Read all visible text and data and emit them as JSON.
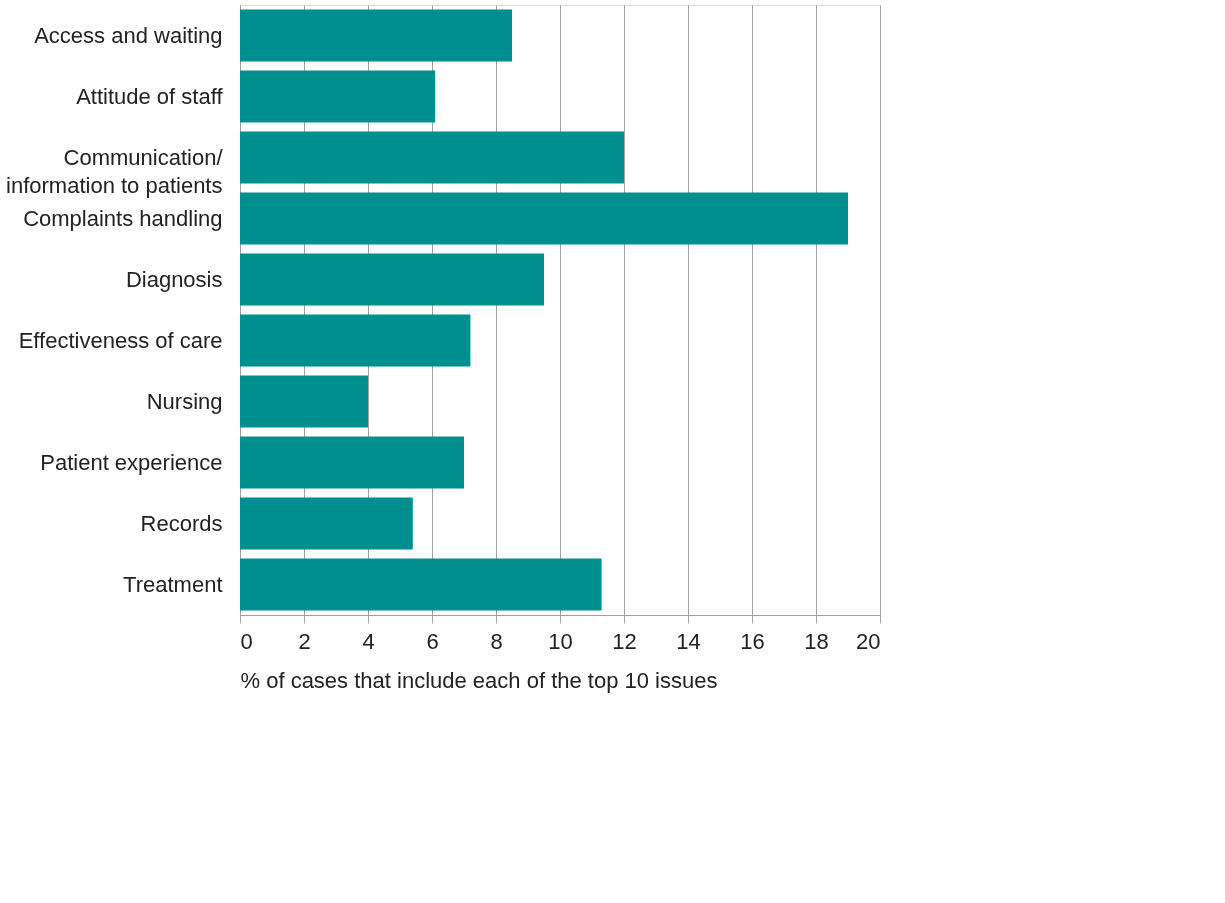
{
  "chart_data": {
    "type": "bar",
    "orientation": "horizontal",
    "xlabel": "% of cases that include each of the top 10 issues",
    "categories": [
      "Access and waiting",
      "Attitude of staff",
      "Communication/ information to patients",
      "Complaints handling",
      "Diagnosis",
      "Effectiveness of care",
      "Nursing",
      "Patient experience",
      "Records",
      "Treatment"
    ],
    "values": [
      8.5,
      6.1,
      12.0,
      19.0,
      9.5,
      7.2,
      4.0,
      7.0,
      5.4,
      11.3
    ],
    "color": "#008f8f",
    "xlim": [
      0,
      20
    ],
    "xticks": [
      0,
      2,
      4,
      6,
      8,
      10,
      12,
      14,
      16,
      18,
      20
    ],
    "grid": "x"
  }
}
